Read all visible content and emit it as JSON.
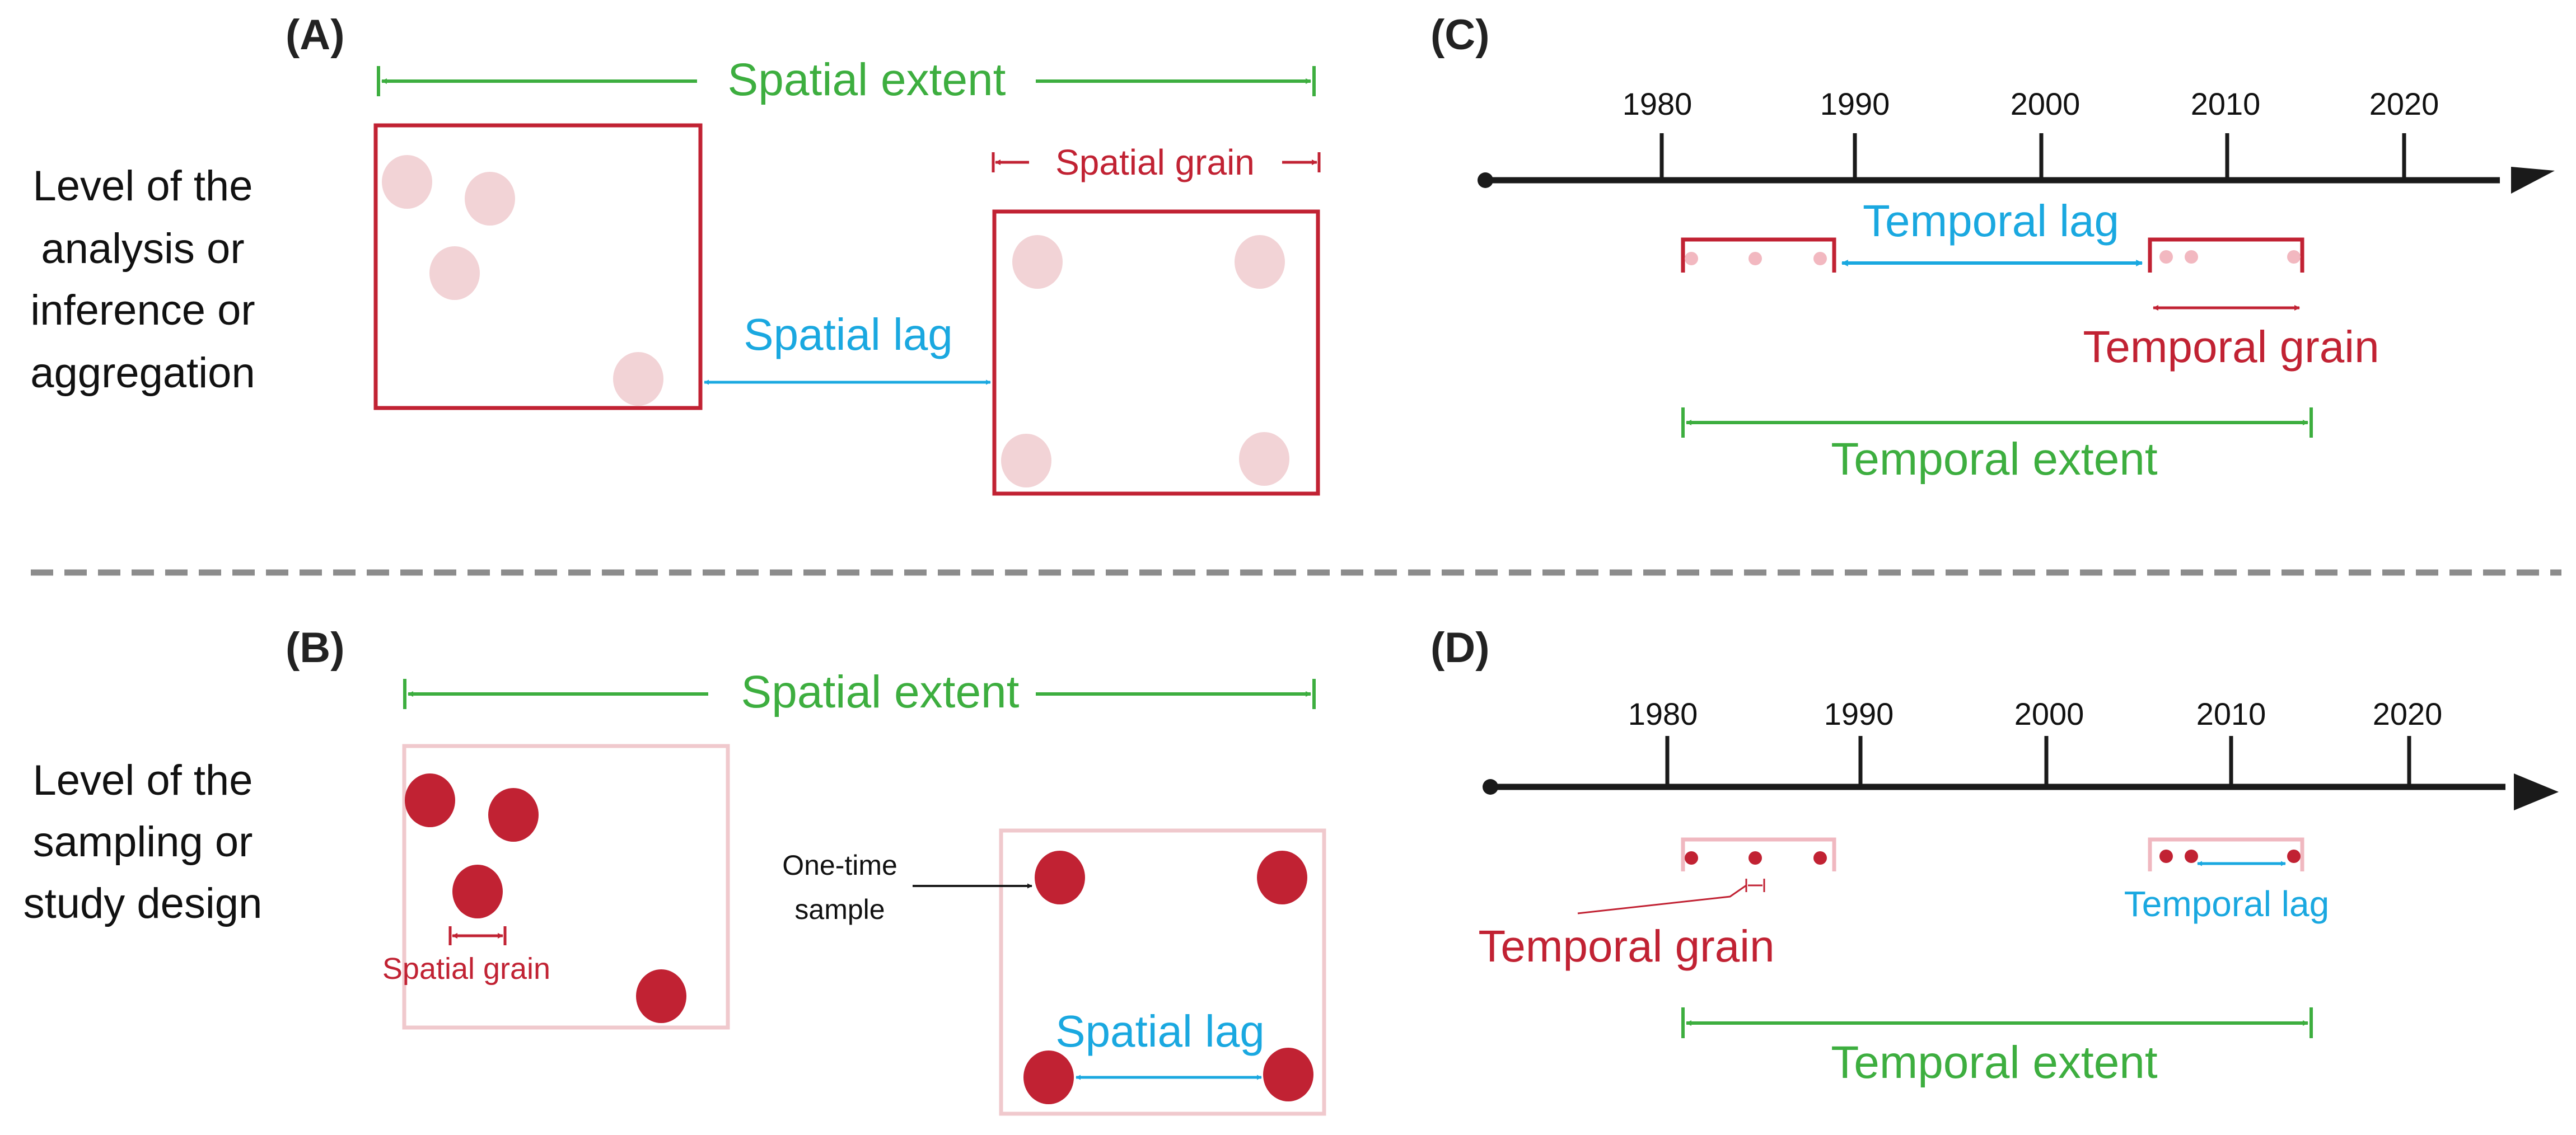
{
  "row_labels": {
    "top": [
      "Level of the",
      "analysis or",
      "inference or",
      "aggregation"
    ],
    "bottom": [
      "Level of the",
      "sampling or",
      "study design"
    ]
  },
  "panels": {
    "A": {
      "letter": "(A)",
      "spatial_extent": "Spatial extent",
      "spatial_grain": "Spatial grain",
      "spatial_lag": "Spatial lag"
    },
    "B": {
      "letter": "(B)",
      "spatial_extent": "Spatial extent",
      "spatial_grain": "Spatial grain",
      "spatial_lag": "Spatial lag",
      "one_time_sample": [
        "One-time",
        "sample"
      ]
    },
    "C": {
      "letter": "(C)",
      "years": [
        "1980",
        "1990",
        "2000",
        "2010",
        "2020"
      ],
      "temporal_lag": "Temporal lag",
      "temporal_grain": "Temporal grain",
      "temporal_extent": "Temporal extent"
    },
    "D": {
      "letter": "(D)",
      "years": [
        "1980",
        "1990",
        "2000",
        "2010",
        "2020"
      ],
      "temporal_lag": "Temporal lag",
      "temporal_grain": "Temporal grain",
      "temporal_extent": "Temporal extent"
    }
  },
  "colors": {
    "green": "#3dae3f",
    "blue": "#1aa8e0",
    "dark_red": "#c12233",
    "light_pink": "#f2d3d6",
    "pink_border": "#f0c9cd",
    "axis": "#1a1a1a",
    "divider": "#8c8c8c"
  }
}
